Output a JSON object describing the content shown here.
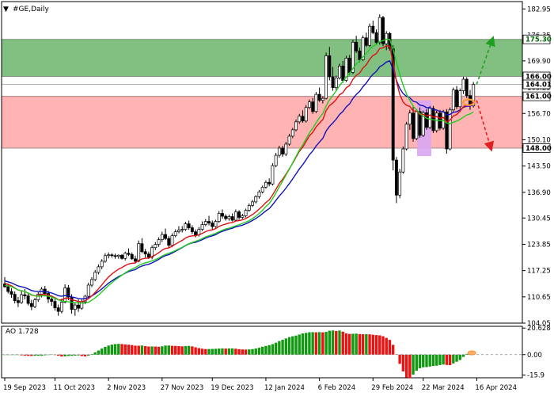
{
  "chart_data": {
    "type": "candlestick",
    "symbol_title": "#GE,Daily",
    "main": {
      "ylim": [
        104.05,
        184.0
      ],
      "ytick_labels": [
        "182.95",
        "176.35",
        "169.90",
        "163.25",
        "156.70",
        "150.10",
        "143.50",
        "136.90",
        "130.45",
        "123.85",
        "117.25",
        "110.65",
        "104.05"
      ],
      "candles": [
        [
          113.9,
          115.6,
          112.9,
          113.2
        ],
        [
          113.2,
          114.0,
          111.5,
          112.0
        ],
        [
          112.0,
          112.8,
          110.4,
          111.3
        ],
        [
          111.3,
          112.0,
          109.0,
          109.7
        ],
        [
          109.7,
          110.6,
          108.1,
          109.2
        ],
        [
          109.2,
          112.1,
          108.9,
          111.2
        ],
        [
          111.2,
          112.6,
          110.0,
          110.9
        ],
        [
          110.9,
          111.6,
          108.5,
          109.0
        ],
        [
          109.0,
          109.9,
          107.3,
          108.2
        ],
        [
          108.2,
          110.4,
          107.8,
          109.9
        ],
        [
          109.9,
          111.8,
          109.4,
          111.3
        ],
        [
          111.3,
          113.1,
          110.5,
          112.6
        ],
        [
          112.6,
          113.4,
          110.9,
          111.5
        ],
        [
          111.5,
          112.2,
          109.1,
          110.1
        ],
        [
          110.1,
          111.0,
          108.4,
          109.5
        ],
        [
          109.5,
          110.2,
          107.2,
          107.9
        ],
        [
          107.9,
          108.7,
          105.9,
          107.0
        ],
        [
          107.0,
          110.2,
          106.5,
          109.3
        ],
        [
          109.3,
          113.8,
          109.0,
          112.9
        ],
        [
          112.9,
          113.6,
          109.8,
          110.6
        ],
        [
          110.6,
          111.3,
          106.4,
          107.5
        ],
        [
          107.5,
          109.2,
          105.9,
          108.6
        ],
        [
          108.6,
          110.0,
          106.9,
          107.8
        ],
        [
          107.8,
          110.1,
          107.4,
          109.4
        ],
        [
          109.4,
          111.2,
          108.8,
          110.8
        ],
        [
          110.8,
          114.2,
          110.5,
          113.6
        ],
        [
          113.6,
          115.6,
          113.1,
          115.0
        ],
        [
          115.0,
          117.4,
          114.6,
          116.8
        ],
        [
          116.8,
          118.8,
          116.3,
          118.2
        ],
        [
          118.2,
          120.1,
          117.6,
          119.6
        ],
        [
          119.6,
          121.6,
          119.2,
          121.0
        ],
        [
          121.0,
          121.8,
          120.3,
          121.2
        ],
        [
          121.2,
          121.6,
          120.5,
          121.0
        ],
        [
          121.0,
          121.5,
          120.2,
          120.8
        ],
        [
          120.8,
          121.3,
          120.2,
          121.1
        ],
        [
          121.1,
          121.4,
          120.0,
          120.3
        ],
        [
          120.3,
          122.0,
          119.8,
          121.6
        ],
        [
          121.6,
          122.8,
          120.9,
          121.3
        ],
        [
          121.3,
          121.8,
          119.9,
          120.2
        ],
        [
          120.2,
          121.0,
          119.0,
          119.6
        ],
        [
          119.6,
          124.8,
          119.3,
          124.0
        ],
        [
          124.0,
          125.4,
          121.6,
          122.0
        ],
        [
          122.0,
          122.7,
          120.5,
          121.4
        ],
        [
          121.4,
          122.0,
          120.2,
          120.6
        ],
        [
          120.6,
          123.6,
          120.1,
          123.0
        ],
        [
          123.0,
          124.4,
          122.4,
          123.8
        ],
        [
          123.8,
          125.6,
          123.2,
          125.0
        ],
        [
          125.0,
          127.0,
          124.4,
          126.3
        ],
        [
          126.3,
          127.8,
          124.9,
          125.3
        ],
        [
          125.3,
          125.9,
          122.9,
          123.6
        ],
        [
          123.6,
          126.6,
          123.1,
          126.0
        ],
        [
          126.0,
          127.6,
          125.6,
          127.0
        ],
        [
          127.0,
          128.4,
          126.6,
          127.4
        ],
        [
          127.4,
          128.4,
          126.8,
          127.6
        ],
        [
          127.6,
          129.5,
          127.2,
          129.0
        ],
        [
          129.0,
          129.8,
          127.5,
          128.0
        ],
        [
          128.0,
          128.6,
          126.4,
          127.0
        ],
        [
          127.0,
          127.6,
          125.6,
          126.2
        ],
        [
          126.2,
          128.2,
          125.8,
          127.6
        ],
        [
          127.6,
          129.6,
          127.2,
          128.8
        ],
        [
          128.8,
          130.2,
          128.4,
          129.6
        ],
        [
          129.6,
          131.0,
          128.6,
          129.2
        ],
        [
          129.2,
          129.8,
          127.6,
          128.3
        ],
        [
          128.3,
          130.0,
          128.0,
          129.6
        ],
        [
          129.6,
          132.2,
          129.2,
          131.6
        ],
        [
          131.6,
          132.6,
          130.3,
          130.9
        ],
        [
          130.9,
          131.4,
          129.8,
          130.3
        ],
        [
          130.3,
          131.3,
          129.8,
          130.8
        ],
        [
          130.8,
          131.6,
          129.6,
          129.9
        ],
        [
          129.9,
          132.6,
          129.6,
          132.0
        ],
        [
          132.0,
          132.4,
          130.0,
          130.6
        ],
        [
          130.6,
          131.5,
          130.2,
          131.0
        ],
        [
          131.0,
          132.8,
          130.6,
          132.4
        ],
        [
          132.4,
          134.1,
          132.0,
          133.6
        ],
        [
          133.6,
          135.0,
          133.2,
          134.5
        ],
        [
          134.5,
          136.2,
          134.1,
          135.8
        ],
        [
          135.8,
          137.5,
          135.3,
          137.0
        ],
        [
          137.0,
          138.6,
          136.6,
          138.2
        ],
        [
          138.2,
          139.9,
          137.8,
          139.4
        ],
        [
          139.4,
          140.4,
          138.4,
          139.0
        ],
        [
          139.0,
          144.2,
          138.6,
          143.6
        ],
        [
          143.6,
          146.8,
          143.2,
          146.2
        ],
        [
          146.2,
          148.6,
          145.6,
          148.0
        ],
        [
          148.0,
          148.6,
          145.8,
          146.5
        ],
        [
          146.5,
          149.6,
          146.0,
          149.0
        ],
        [
          149.0,
          151.6,
          148.6,
          151.0
        ],
        [
          151.0,
          153.1,
          150.5,
          152.6
        ],
        [
          152.6,
          155.2,
          152.2,
          154.6
        ],
        [
          154.6,
          156.6,
          154.1,
          156.0
        ],
        [
          156.0,
          157.5,
          154.4,
          154.8
        ],
        [
          154.8,
          158.8,
          154.4,
          158.2
        ],
        [
          158.2,
          160.2,
          157.8,
          159.6
        ],
        [
          159.6,
          160.6,
          156.6,
          157.2
        ],
        [
          157.2,
          162.1,
          156.8,
          161.5
        ],
        [
          161.5,
          163.2,
          159.6,
          160.0
        ],
        [
          160.0,
          161.0,
          159.2,
          160.5
        ],
        [
          160.5,
          172.0,
          160.2,
          171.2
        ],
        [
          171.2,
          173.4,
          165.0,
          165.9
        ],
        [
          165.9,
          168.4,
          162.4,
          163.2
        ],
        [
          163.2,
          166.2,
          162.6,
          165.6
        ],
        [
          165.6,
          169.2,
          165.2,
          168.6
        ],
        [
          168.6,
          169.9,
          164.4,
          165.0
        ],
        [
          165.0,
          171.2,
          164.6,
          170.6
        ],
        [
          170.6,
          171.4,
          166.4,
          167.0
        ],
        [
          167.0,
          175.2,
          166.6,
          174.6
        ],
        [
          174.6,
          176.2,
          171.9,
          172.4
        ],
        [
          172.4,
          173.2,
          169.6,
          170.2
        ],
        [
          170.2,
          176.3,
          169.9,
          175.7
        ],
        [
          175.7,
          177.0,
          173.4,
          173.8
        ],
        [
          173.8,
          179.3,
          173.4,
          178.6
        ],
        [
          178.6,
          180.0,
          176.6,
          177.0
        ],
        [
          177.0,
          177.8,
          174.0,
          174.5
        ],
        [
          174.5,
          181.6,
          174.0,
          180.8
        ],
        [
          180.8,
          181.2,
          173.6,
          174.2
        ],
        [
          174.2,
          177.4,
          172.6,
          176.8
        ],
        [
          176.8,
          177.2,
          172.5,
          173.0
        ],
        [
          173.0,
          173.8,
          142.4,
          145.0
        ],
        [
          145.0,
          145.8,
          134.2,
          136.2
        ],
        [
          136.2,
          142.8,
          135.4,
          142.0
        ],
        [
          142.0,
          148.4,
          141.6,
          147.8
        ],
        [
          147.8,
          154.6,
          147.4,
          154.0
        ],
        [
          154.0,
          157.6,
          152.6,
          156.8
        ],
        [
          156.8,
          158.4,
          149.6,
          150.4
        ],
        [
          150.4,
          157.8,
          150.0,
          157.2
        ],
        [
          157.2,
          158.2,
          150.6,
          151.2
        ],
        [
          151.2,
          157.4,
          150.8,
          156.9
        ],
        [
          156.9,
          157.8,
          152.6,
          153.2
        ],
        [
          153.2,
          158.6,
          152.8,
          158.0
        ],
        [
          158.0,
          158.6,
          151.8,
          152.4
        ],
        [
          152.4,
          157.4,
          151.9,
          156.8
        ],
        [
          156.8,
          157.6,
          152.5,
          153.0
        ],
        [
          153.0,
          157.6,
          152.6,
          157.1
        ],
        [
          157.1,
          157.8,
          146.6,
          147.8
        ],
        [
          147.8,
          158.2,
          147.4,
          157.6
        ],
        [
          157.6,
          163.2,
          157.2,
          162.6
        ],
        [
          162.6,
          163.6,
          157.8,
          158.4
        ],
        [
          158.4,
          163.0,
          157.9,
          162.4
        ],
        [
          162.4,
          165.9,
          161.6,
          165.3
        ],
        [
          165.3,
          165.8,
          160.6,
          161.2
        ],
        [
          161.2,
          162.6,
          157.6,
          158.6
        ],
        [
          158.6,
          164.6,
          158.2,
          164.0
        ]
      ],
      "ma_fast_green": [
        113.6,
        113.4,
        113.2,
        112.8,
        112.4,
        112.2,
        112.0,
        111.6,
        111.2,
        110.9,
        110.8,
        110.9,
        110.9,
        110.8,
        110.6,
        110.3,
        109.9,
        109.6,
        109.5,
        109.4,
        109.3,
        109.2,
        109.1,
        109.1,
        109.1,
        109.3,
        109.8,
        110.4,
        111.1,
        111.9,
        112.7,
        113.5,
        114.2,
        114.9,
        115.5,
        116.1,
        116.7,
        117.2,
        117.6,
        118.0,
        118.5,
        118.9,
        119.2,
        119.4,
        119.7,
        120.0,
        120.4,
        120.9,
        121.3,
        121.6,
        121.9,
        122.3,
        122.7,
        123.1,
        123.6,
        124.0,
        124.3,
        124.6,
        124.9,
        125.3,
        125.7,
        126.0,
        126.3,
        126.6,
        127.0,
        127.4,
        127.7,
        127.9,
        128.2,
        128.5,
        128.8,
        129.1,
        129.4,
        129.8,
        130.3,
        130.9,
        131.6,
        132.4,
        133.3,
        134.1,
        135.3,
        136.7,
        138.3,
        139.7,
        141.2,
        142.7,
        144.3,
        145.9,
        147.5,
        148.8,
        150.3,
        151.8,
        153.0,
        154.4,
        155.6,
        156.7,
        158.6,
        160.1,
        161.2,
        162.4,
        163.7,
        164.7,
        165.9,
        166.8,
        168.0,
        169.1,
        169.9,
        170.9,
        171.8,
        172.8,
        173.6,
        174.0,
        174.8,
        175.0,
        175.3,
        175.3,
        172.8,
        169.6,
        166.5,
        163.8,
        161.6,
        160.0,
        158.5,
        157.6,
        156.7,
        156.0,
        155.5,
        155.3,
        155.1,
        155.0,
        154.9,
        155.0,
        154.3,
        154.1,
        154.5,
        154.8,
        155.2,
        155.8,
        156.3,
        156.6,
        157.1
      ]
    },
    "levels": [
      {
        "label": "175.30",
        "value": 175.3,
        "color": "#006600"
      },
      {
        "label": "166.00",
        "value": 166.0,
        "color": "#000000"
      },
      {
        "label": "164.01",
        "value": 164.01,
        "color": "#000000"
      },
      {
        "label": "161.00",
        "value": 161.0,
        "color": "#000000"
      },
      {
        "label": "148.00",
        "value": 148.0,
        "color": "#000000"
      }
    ],
    "zones": [
      {
        "name": "resistance",
        "from": 166.0,
        "to": 175.3,
        "fill": "#82c082",
        "stroke": "#3c8c3c"
      },
      {
        "name": "support",
        "from": 148.0,
        "to": 161.0,
        "fill": "#ffb3b3",
        "stroke": "#e06060"
      }
    ],
    "highlight": {
      "from": 146.0,
      "to": 160.0,
      "fill": "#d9a6f2",
      "bar_start": 116,
      "bar_end": 119,
      "x_start": 527,
      "x_end": 545
    },
    "forecast": [
      {
        "name": "bullish-path",
        "points": [
          [
            164.0,
            0
          ],
          [
            175.3,
            20
          ]
        ],
        "color": "#1f9f1f"
      },
      {
        "name": "bearish-path",
        "points": [
          [
            160.0,
            0
          ],
          [
            148.0,
            18
          ]
        ],
        "color": "#e02020"
      }
    ],
    "x_tick_labels": [
      "19 Sep 2023",
      "11 Oct 2023",
      "2 Nov 2023",
      "27 Nov 2023",
      "19 Dec 2023",
      "12 Jan 2024",
      "6 Feb 2024",
      "29 Feb 2024",
      "22 Mar 2024",
      "16 Apr 2024"
    ],
    "x_tick_bars": [
      0,
      15,
      31,
      47,
      62,
      78,
      94,
      110,
      125,
      141
    ],
    "ao": {
      "label": "AO 1.728",
      "ylim": [
        -18.0,
        22.0
      ],
      "ytick_labels": [
        "20.628",
        "0.00",
        "-15.9"
      ],
      "ytick_values": [
        20.628,
        0.0,
        -15.9
      ]
    },
    "colors": {
      "up_candle": "#ffffff",
      "down_candle": "#000000",
      "ma_fast": "#22cc22",
      "ma_mid": "#dd1111",
      "ma_slow": "#1111bb",
      "ao_up": "#129912",
      "ao_down": "#ee1111"
    }
  }
}
